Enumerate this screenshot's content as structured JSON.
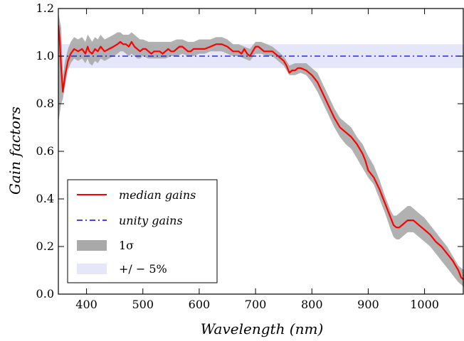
{
  "chart_data": {
    "type": "line",
    "xlabel": "Wavelength (nm)",
    "ylabel": "Gain factors",
    "xlim": [
      350,
      1070
    ],
    "ylim": [
      0.0,
      1.2
    ],
    "xticks": [
      400,
      500,
      600,
      700,
      800,
      900,
      1000
    ],
    "yticks": [
      0.0,
      0.2,
      0.4,
      0.6,
      0.8,
      1.0,
      1.2
    ],
    "grid": false,
    "legend_position": "lower-left",
    "colors": {
      "median": "#ff0000",
      "unity": "#0000ff",
      "sigma_band": "#a9a9a9",
      "band_5pct": "#e6e6fb"
    },
    "series": [
      {
        "name": "median gains",
        "kind": "line",
        "x": [
          350,
          352,
          355,
          358,
          362,
          367,
          372,
          378,
          385,
          392,
          398,
          402,
          405,
          410,
          415,
          420,
          425,
          432,
          440,
          448,
          455,
          460,
          465,
          470,
          475,
          480,
          485,
          490,
          495,
          500,
          505,
          510,
          515,
          520,
          525,
          530,
          535,
          540,
          545,
          550,
          555,
          560,
          565,
          570,
          575,
          580,
          585,
          590,
          595,
          600,
          610,
          620,
          630,
          640,
          650,
          660,
          670,
          675,
          680,
          685,
          690,
          695,
          700,
          705,
          710,
          715,
          720,
          730,
          740,
          745,
          750,
          755,
          760,
          765,
          770,
          775,
          780,
          790,
          800,
          810,
          820,
          830,
          840,
          850,
          860,
          870,
          880,
          890,
          895,
          900,
          910,
          920,
          930,
          940,
          945,
          950,
          955,
          960,
          965,
          970,
          975,
          980,
          990,
          1000,
          1010,
          1020,
          1030,
          1040,
          1050,
          1055,
          1060,
          1065,
          1070
        ],
        "y": [
          1.13,
          1.08,
          0.95,
          0.85,
          0.92,
          0.98,
          1.01,
          1.03,
          1.02,
          1.03,
          1.01,
          1.04,
          1.02,
          1.01,
          1.03,
          1.02,
          1.04,
          1.02,
          1.03,
          1.04,
          1.05,
          1.06,
          1.05,
          1.05,
          1.04,
          1.06,
          1.04,
          1.03,
          1.02,
          1.03,
          1.03,
          1.02,
          1.01,
          1.02,
          1.02,
          1.02,
          1.01,
          1.02,
          1.03,
          1.02,
          1.02,
          1.03,
          1.04,
          1.04,
          1.03,
          1.02,
          1.02,
          1.03,
          1.03,
          1.03,
          1.03,
          1.04,
          1.05,
          1.05,
          1.04,
          1.02,
          1.02,
          1.01,
          1.03,
          1.01,
          1.0,
          1.02,
          1.04,
          1.04,
          1.03,
          1.02,
          1.02,
          1.02,
          1.0,
          0.99,
          0.98,
          0.96,
          0.93,
          0.94,
          0.94,
          0.95,
          0.95,
          0.94,
          0.92,
          0.89,
          0.84,
          0.79,
          0.74,
          0.7,
          0.68,
          0.66,
          0.63,
          0.59,
          0.56,
          0.52,
          0.49,
          0.44,
          0.38,
          0.32,
          0.29,
          0.28,
          0.28,
          0.29,
          0.3,
          0.31,
          0.31,
          0.31,
          0.29,
          0.27,
          0.25,
          0.22,
          0.2,
          0.17,
          0.14,
          0.12,
          0.1,
          0.07,
          0.06
        ]
      },
      {
        "name": "unity gains",
        "kind": "line",
        "x": [
          350,
          1070
        ],
        "y": [
          1.0,
          1.0
        ]
      },
      {
        "name": "1σ",
        "kind": "band",
        "x": [
          350,
          355,
          358,
          362,
          367,
          372,
          378,
          385,
          392,
          398,
          402,
          405,
          410,
          415,
          420,
          425,
          432,
          440,
          448,
          455,
          460,
          465,
          470,
          475,
          480,
          485,
          490,
          495,
          500,
          510,
          520,
          530,
          540,
          550,
          560,
          570,
          580,
          590,
          600,
          610,
          620,
          630,
          640,
          650,
          660,
          670,
          680,
          690,
          700,
          710,
          720,
          730,
          740,
          750,
          760,
          770,
          780,
          790,
          800,
          810,
          820,
          830,
          840,
          850,
          860,
          870,
          880,
          890,
          900,
          910,
          920,
          930,
          940,
          945,
          950,
          955,
          960,
          965,
          970,
          975,
          980,
          990,
          1000,
          1010,
          1020,
          1030,
          1040,
          1050,
          1060,
          1070
        ],
        "lower": [
          0.72,
          0.8,
          0.82,
          0.88,
          0.94,
          0.97,
          0.99,
          0.98,
          0.99,
          0.97,
          0.99,
          0.97,
          0.96,
          0.98,
          0.97,
          0.99,
          0.98,
          0.99,
          1.0,
          1.01,
          1.02,
          1.02,
          1.01,
          1.0,
          1.01,
          1.0,
          0.99,
          0.99,
          1.0,
          0.99,
          0.99,
          0.99,
          0.99,
          1.0,
          1.0,
          1.01,
          1.0,
          1.0,
          1.01,
          1.01,
          1.02,
          1.02,
          1.02,
          1.01,
          1.0,
          1.0,
          0.99,
          0.98,
          1.01,
          1.01,
          1.0,
          1.0,
          0.98,
          0.96,
          0.92,
          0.92,
          0.93,
          0.92,
          0.89,
          0.85,
          0.8,
          0.75,
          0.7,
          0.66,
          0.63,
          0.61,
          0.57,
          0.53,
          0.49,
          0.46,
          0.4,
          0.34,
          0.27,
          0.24,
          0.23,
          0.23,
          0.24,
          0.25,
          0.26,
          0.26,
          0.26,
          0.24,
          0.22,
          0.2,
          0.17,
          0.14,
          0.11,
          0.08,
          0.05,
          0.03
        ],
        "upper": [
          1.18,
          1.12,
          0.92,
          0.98,
          1.03,
          1.06,
          1.08,
          1.07,
          1.08,
          1.06,
          1.09,
          1.08,
          1.06,
          1.08,
          1.07,
          1.09,
          1.07,
          1.08,
          1.09,
          1.1,
          1.1,
          1.09,
          1.09,
          1.09,
          1.1,
          1.09,
          1.08,
          1.07,
          1.07,
          1.06,
          1.06,
          1.06,
          1.06,
          1.06,
          1.07,
          1.07,
          1.06,
          1.06,
          1.07,
          1.07,
          1.07,
          1.08,
          1.08,
          1.07,
          1.05,
          1.05,
          1.04,
          1.03,
          1.06,
          1.06,
          1.05,
          1.04,
          1.02,
          1.0,
          0.96,
          0.97,
          0.97,
          0.97,
          0.95,
          0.93,
          0.88,
          0.83,
          0.78,
          0.74,
          0.72,
          0.7,
          0.66,
          0.63,
          0.58,
          0.54,
          0.48,
          0.41,
          0.35,
          0.33,
          0.33,
          0.34,
          0.35,
          0.36,
          0.37,
          0.37,
          0.36,
          0.34,
          0.32,
          0.29,
          0.26,
          0.23,
          0.2,
          0.16,
          0.12,
          0.1
        ]
      },
      {
        "name": "+/−5%",
        "kind": "band",
        "x": [
          350,
          1070
        ],
        "lower": [
          0.95,
          0.95
        ],
        "upper": [
          1.05,
          1.05
        ]
      }
    ]
  },
  "legend": {
    "items": [
      {
        "key": "median",
        "label": "median gains"
      },
      {
        "key": "unity",
        "label": "unity gains"
      },
      {
        "key": "sigma",
        "label": "1σ"
      },
      {
        "key": "pct",
        "label": "+/ − 5%"
      }
    ]
  }
}
